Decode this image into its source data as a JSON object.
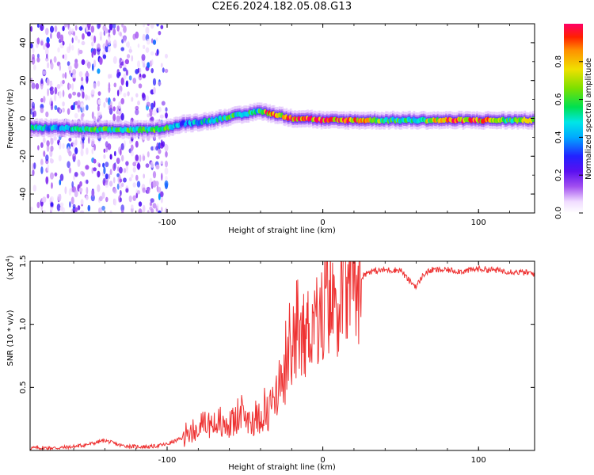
{
  "title": "C2E6.2024.182.05.08.G13",
  "chart_data": [
    {
      "type": "heatmap",
      "xlabel": "Height of straight line (km)",
      "ylabel": "Frequency (Hz)",
      "xlim": [
        -188,
        136
      ],
      "ylim": [
        -50,
        50
      ],
      "xticks": [
        -100,
        0,
        100
      ],
      "yticks": [
        -40,
        -20,
        0,
        20,
        40
      ],
      "colorbar": {
        "label": "Normalized spectral amplitude",
        "range": [
          0,
          1
        ],
        "ticks": [
          "0.0",
          "0.2",
          "0.4",
          "0.6",
          "0.8"
        ]
      },
      "ridge": {
        "x": [
          -186,
          -170,
          -150,
          -130,
          -110,
          -100,
          -90,
          -80,
          -70,
          -60,
          -50,
          -42,
          -36,
          -30,
          -20,
          -10,
          0,
          20,
          40,
          60,
          80,
          100,
          120,
          136
        ],
        "y": [
          -5,
          -5,
          -6,
          -6,
          -6,
          -5,
          -3,
          -2,
          -1,
          1,
          2,
          4,
          3,
          2,
          0,
          0,
          -1,
          -1,
          -1,
          -1,
          -1,
          -1,
          -1,
          -1
        ],
        "amplitude": [
          0.5,
          0.4,
          0.6,
          0.55,
          0.6,
          0.6,
          0.35,
          0.45,
          0.5,
          0.55,
          0.55,
          0.5,
          0.9,
          0.85,
          0.9,
          0.85,
          0.95,
          0.9,
          0.55,
          0.55,
          0.9,
          0.9,
          0.55,
          0.8
        ]
      },
      "noise_region_x": [
        -188,
        -100
      ]
    },
    {
      "type": "line",
      "xlabel": "Height of straight line (km)",
      "ylabel": "SNR (10 * v/v)",
      "y_multiplier": "(x10^4)",
      "xlim": [
        -188,
        136
      ],
      "ylim": [
        0,
        1.5
      ],
      "xticks": [
        -100,
        0,
        100
      ],
      "yticks": [
        0.5,
        1.0,
        1.5
      ],
      "ytick_labels": [
        "0.5",
        "1.0",
        "1.5"
      ],
      "color": "#ee3333",
      "series": [
        {
          "x": [
            -188,
            -180,
            -170,
            -160,
            -150,
            -140,
            -130,
            -120,
            -110,
            -100,
            -90,
            -85,
            -80,
            -75,
            -70,
            -65,
            -60,
            -55,
            -50,
            -45,
            -40,
            -35,
            -30,
            -25,
            -20,
            -15,
            -10,
            -5,
            0,
            5,
            10,
            15,
            20,
            25,
            30,
            40,
            50,
            55,
            60,
            65,
            70,
            80,
            90,
            100,
            110,
            120,
            130,
            136
          ],
          "y": [
            0.02,
            0.02,
            0.02,
            0.03,
            0.05,
            0.08,
            0.04,
            0.03,
            0.03,
            0.05,
            0.1,
            0.13,
            0.17,
            0.22,
            0.2,
            0.18,
            0.2,
            0.24,
            0.25,
            0.22,
            0.27,
            0.3,
            0.45,
            0.55,
            0.75,
            0.85,
            0.95,
            1.05,
            1.05,
            1.15,
            1.2,
            1.25,
            1.32,
            1.38,
            1.42,
            1.43,
            1.43,
            1.35,
            1.3,
            1.4,
            1.43,
            1.43,
            1.42,
            1.44,
            1.43,
            1.42,
            1.41,
            1.4
          ]
        }
      ]
    }
  ]
}
